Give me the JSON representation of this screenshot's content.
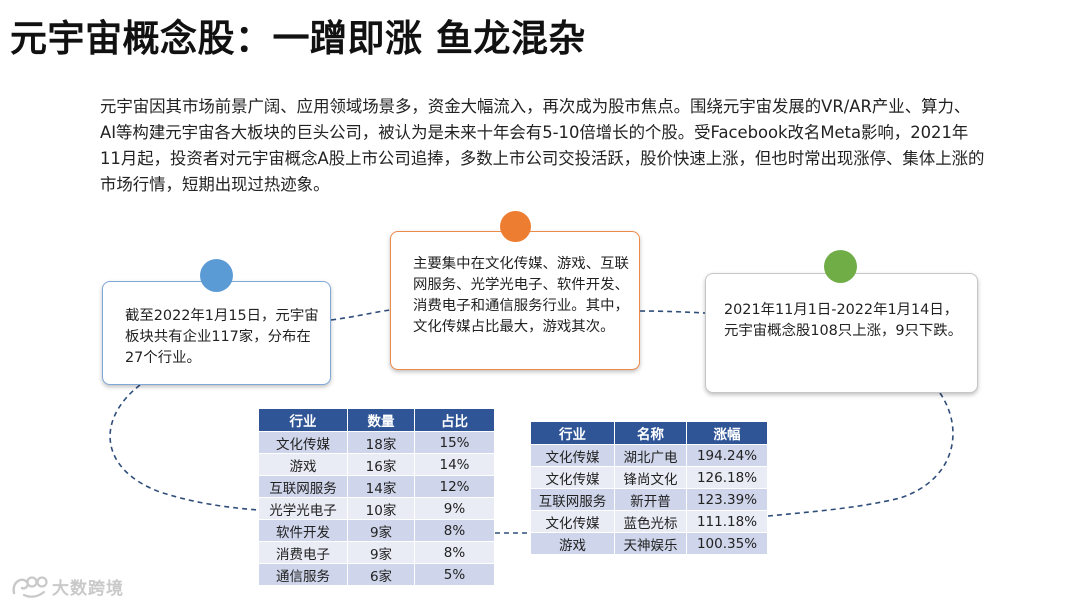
{
  "title": "元宇宙概念股：一蹭即涨 鱼龙混杂",
  "intro": "元宇宙因其市场前景广阔、应用领域场景多，资金大幅流入，再次成为股市焦点。围绕元宇宙发展的VR/AR产业、算力、AI等构建元宇宙各大板块的巨头公司，被认为是未来十年会有5-10倍增长的个股。受Facebook改名Meta影响，2021年11月起，投资者对元宇宙概念A股上市公司追捧，多数上市公司交投活跃，股价快速上涨，但也时常出现涨停、集体上涨的市场行情，短期出现过热迹象。",
  "cards": {
    "left": "截至2022年1月15日，元宇宙板块共有企业117家，分布在27个行业。",
    "middle": "主要集中在文化传媒、游戏、互联网服务、光学光电子、软件开发、消费电子和通信服务行业。其中，文化传媒占比最大，游戏其次。",
    "right": "2021年11月1日-2022年1月14日，元宇宙概念股108只上涨，9只下跌。"
  },
  "colors": {
    "accent_blue": "#5b9bd5",
    "accent_orange": "#ed7d31",
    "accent_green": "#70ad47",
    "table_header": "#2f5597"
  },
  "industry_table": {
    "headers": [
      "行业",
      "数量",
      "占比"
    ],
    "rows": [
      [
        "文化传媒",
        "18家",
        "15%"
      ],
      [
        "游戏",
        "16家",
        "14%"
      ],
      [
        "互联网服务",
        "14家",
        "12%"
      ],
      [
        "光学光电子",
        "10家",
        "9%"
      ],
      [
        "软件开发",
        "9家",
        "8%"
      ],
      [
        "消费电子",
        "9家",
        "8%"
      ],
      [
        "通信服务",
        "6家",
        "5%"
      ]
    ]
  },
  "gain_table": {
    "headers": [
      "行业",
      "名称",
      "涨幅"
    ],
    "rows": [
      [
        "文化传媒",
        "湖北广电",
        "194.24%"
      ],
      [
        "文化传媒",
        "锋尚文化",
        "126.18%"
      ],
      [
        "互联网服务",
        "新开普",
        "123.39%"
      ],
      [
        "文化传媒",
        "蓝色光标",
        "111.18%"
      ],
      [
        "游戏",
        "天神娱乐",
        "100.35%"
      ]
    ]
  },
  "logo": {
    "text": "大数跨境",
    "icon": "logo-swirl-icon"
  }
}
